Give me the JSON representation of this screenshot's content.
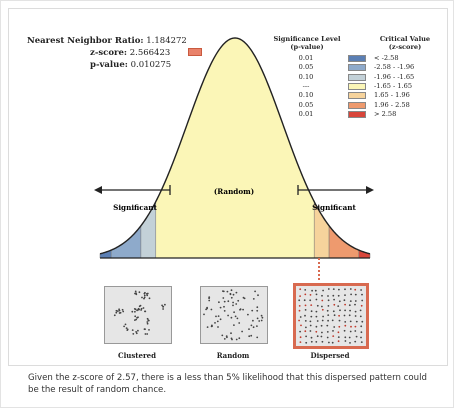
{
  "stats": {
    "nnr_label": "Nearest Neighbor Ratio:",
    "nnr_value": "1.184272",
    "z_label": "z-score:",
    "z_value": "2.566423",
    "p_label": "p-value:",
    "p_value": "0.010275"
  },
  "legend": {
    "sig_header_1": "Significance Level",
    "sig_header_2": "(p-value)",
    "crit_header_1": "Critical Value",
    "crit_header_2": "(z-score)",
    "rows": [
      {
        "p": "0.01",
        "z": "< -2.58",
        "color": "#5b7fb4"
      },
      {
        "p": "0.05",
        "z": "-2.58 - -1.96",
        "color": "#8eaacb"
      },
      {
        "p": "0.10",
        "z": "-1.96 - -1.65",
        "color": "#c3d1d8"
      },
      {
        "p": "---",
        "z": "-1.65 - 1.65",
        "color": "#fbf6b7"
      },
      {
        "p": "0.10",
        "z": "1.65 - 1.96",
        "color": "#f6d39c"
      },
      {
        "p": "0.05",
        "z": "1.96 - 2.58",
        "color": "#ee9a6e"
      },
      {
        "p": "0.01",
        "z": "> 2.58",
        "color": "#d8453a"
      }
    ]
  },
  "curve": {
    "random_label": "(Random)",
    "left_label": "Significant",
    "right_label": "Significant"
  },
  "patterns": {
    "clustered": "Clustered",
    "random": "Random",
    "dispersed": "Dispersed",
    "highlight_color": "#d86a50"
  },
  "caption": "Given the z-score of 2.57, there is a less than 5% likelihood that this dispersed pattern could be the result of random chance."
}
